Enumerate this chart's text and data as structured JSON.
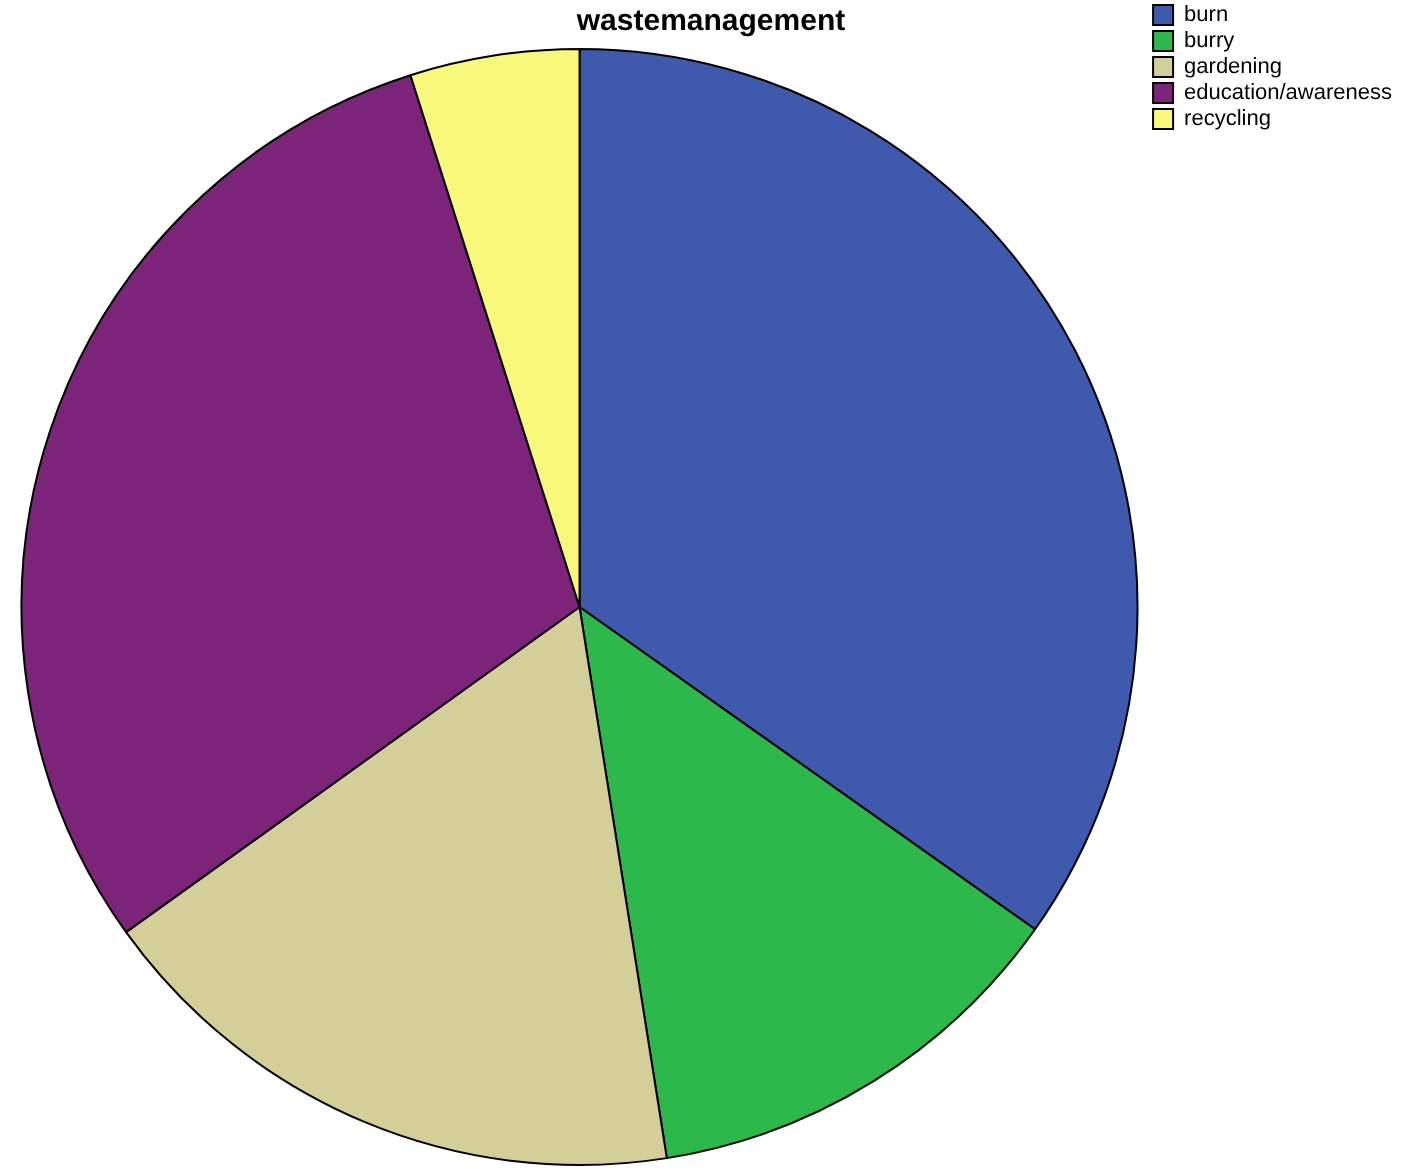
{
  "chart_data": {
    "type": "pie",
    "title": "wastemanagement",
    "categories": [
      "burn",
      "burry",
      "gardening",
      "education/awareness",
      "recycling"
    ],
    "values": [
      34.8,
      12.7,
      17.6,
      30.0,
      4.9
    ],
    "colors": [
      "#3f5aac",
      "#2db84c",
      "#d4cf98",
      "#7b2479",
      "#f8f87a"
    ],
    "legend": "top right"
  }
}
